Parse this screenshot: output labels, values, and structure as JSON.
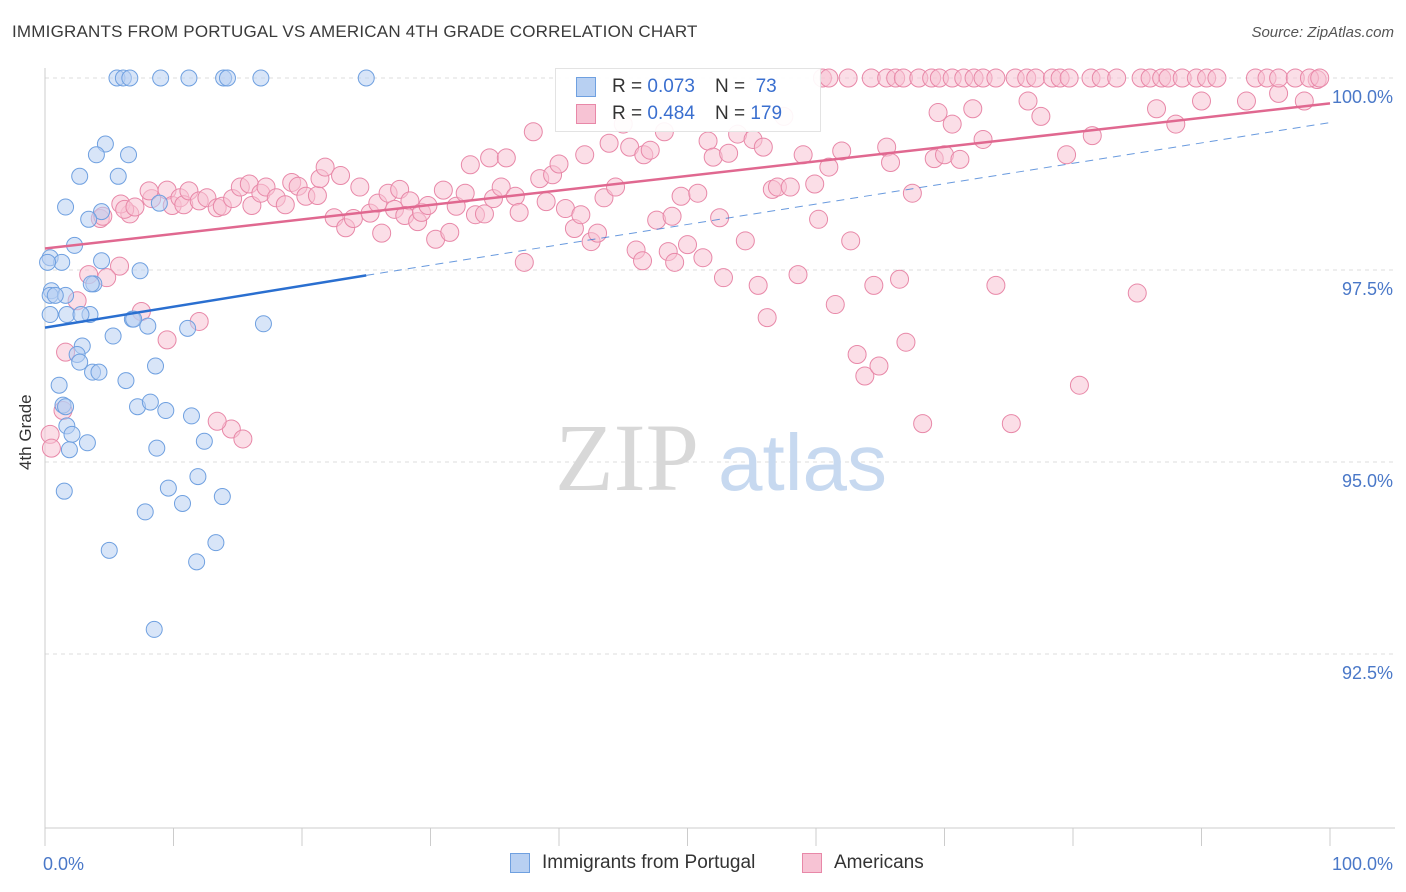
{
  "title": "IMMIGRANTS FROM PORTUGAL VS AMERICAN 4TH GRADE CORRELATION CHART",
  "source": "Source: ZipAtlas.com",
  "watermark": {
    "zip": "ZIP",
    "atlas": "atlas"
  },
  "legend": {
    "r_label": "R =",
    "n_label": "N =",
    "rows": [
      {
        "r": "0.073",
        "n": "73"
      },
      {
        "r": "0.484",
        "n": "179"
      }
    ]
  },
  "bottom_legend": {
    "series1": "Immigrants from Portugal",
    "series2": "Americans"
  },
  "colors": {
    "blue": "#6fa0e0",
    "blue_fill": "#b8d0f2",
    "blue_line": "#2a6fd0",
    "pink": "#e888a8",
    "pink_fill": "#f7c3d4",
    "pink_line": "#e06890",
    "axis_text": "#4a78c8",
    "grid": "#dddddd"
  },
  "chart_data": {
    "type": "scatter",
    "title": "IMMIGRANTS FROM PORTUGAL VS AMERICAN 4TH GRADE CORRELATION CHART",
    "xlabel": "",
    "ylabel": "4th Grade",
    "x_tick_labels": [
      "0.0%",
      "100.0%"
    ],
    "y_tick_labels": [
      "100.0%",
      "97.5%",
      "95.0%",
      "92.5%"
    ],
    "y_ticks": [
      100.0,
      97.5,
      95.0,
      92.5
    ],
    "xlim": [
      0,
      100
    ],
    "ylim": [
      90.5,
      100.2
    ],
    "grid": true,
    "legend_position": "top-center",
    "series": [
      {
        "name": "Immigrants from Portugal",
        "color": "#6fa0e0",
        "R": 0.073,
        "N": 73,
        "trend": {
          "x": [
            0,
            25
          ],
          "y": [
            96.75,
            97.43
          ],
          "style": "solid"
        },
        "trend_extended": {
          "x": [
            25,
            100
          ],
          "y": [
            97.43,
            99.42
          ],
          "style": "dashed"
        },
        "points": [
          [
            5.6,
            100.0
          ],
          [
            6.1,
            100.0
          ],
          [
            6.6,
            100.0
          ],
          [
            9.0,
            100.0
          ],
          [
            11.2,
            100.0
          ],
          [
            13.9,
            100.0
          ],
          [
            14.2,
            100.0
          ],
          [
            16.8,
            100.0
          ],
          [
            25.0,
            100.0
          ],
          [
            4.7,
            99.14
          ],
          [
            4.0,
            99.0
          ],
          [
            6.5,
            99.0
          ],
          [
            2.7,
            98.72
          ],
          [
            5.7,
            98.72
          ],
          [
            1.6,
            98.32
          ],
          [
            4.4,
            98.26
          ],
          [
            3.4,
            98.16
          ],
          [
            8.9,
            98.37
          ],
          [
            2.3,
            97.82
          ],
          [
            0.4,
            97.66
          ],
          [
            1.3,
            97.6
          ],
          [
            0.2,
            97.6
          ],
          [
            4.4,
            97.62
          ],
          [
            7.4,
            97.49
          ],
          [
            3.8,
            97.32
          ],
          [
            3.6,
            97.32
          ],
          [
            0.5,
            97.23
          ],
          [
            0.4,
            97.17
          ],
          [
            1.6,
            97.17
          ],
          [
            0.8,
            97.17
          ],
          [
            1.7,
            96.92
          ],
          [
            3.5,
            96.92
          ],
          [
            0.4,
            96.92
          ],
          [
            2.8,
            96.92
          ],
          [
            6.8,
            96.86
          ],
          [
            6.9,
            96.86
          ],
          [
            8.0,
            96.77
          ],
          [
            11.1,
            96.74
          ],
          [
            17.0,
            96.8
          ],
          [
            5.3,
            96.64
          ],
          [
            2.9,
            96.51
          ],
          [
            2.5,
            96.4
          ],
          [
            2.7,
            96.3
          ],
          [
            3.7,
            96.17
          ],
          [
            4.2,
            96.17
          ],
          [
            8.6,
            96.25
          ],
          [
            6.3,
            96.06
          ],
          [
            1.1,
            96.0
          ],
          [
            1.4,
            95.74
          ],
          [
            1.6,
            95.72
          ],
          [
            7.2,
            95.72
          ],
          [
            8.2,
            95.78
          ],
          [
            9.4,
            95.67
          ],
          [
            11.4,
            95.6
          ],
          [
            1.7,
            95.47
          ],
          [
            2.1,
            95.36
          ],
          [
            3.3,
            95.25
          ],
          [
            12.4,
            95.27
          ],
          [
            8.7,
            95.18
          ],
          [
            1.9,
            95.16
          ],
          [
            11.9,
            94.81
          ],
          [
            9.6,
            94.66
          ],
          [
            1.5,
            94.62
          ],
          [
            10.7,
            94.46
          ],
          [
            13.8,
            94.55
          ],
          [
            7.8,
            94.35
          ],
          [
            13.3,
            93.95
          ],
          [
            5.0,
            93.85
          ],
          [
            11.8,
            93.7
          ],
          [
            8.5,
            92.82
          ]
        ]
      },
      {
        "name": "Americans",
        "color": "#e888a8",
        "R": 0.484,
        "N": 179,
        "trend": {
          "x": [
            0,
            100
          ],
          "y": [
            97.78,
            99.67
          ],
          "style": "solid"
        },
        "points": [
          [
            0.4,
            95.36
          ],
          [
            0.5,
            95.18
          ],
          [
            1.4,
            95.67
          ],
          [
            1.6,
            96.43
          ],
          [
            2.5,
            97.1
          ],
          [
            3.4,
            97.44
          ],
          [
            5.8,
            97.55
          ],
          [
            4.8,
            97.4
          ],
          [
            4.3,
            98.17
          ],
          [
            4.5,
            98.2
          ],
          [
            6.6,
            98.23
          ],
          [
            5.9,
            98.36
          ],
          [
            6.2,
            98.29
          ],
          [
            7.0,
            98.32
          ],
          [
            8.3,
            98.43
          ],
          [
            9.5,
            98.54
          ],
          [
            9.9,
            98.34
          ],
          [
            8.1,
            98.53
          ],
          [
            10.5,
            98.44
          ],
          [
            10.8,
            98.35
          ],
          [
            11.2,
            98.53
          ],
          [
            12.0,
            98.4
          ],
          [
            12.6,
            98.44
          ],
          [
            13.4,
            98.31
          ],
          [
            13.8,
            98.33
          ],
          [
            14.6,
            98.43
          ],
          [
            15.2,
            98.58
          ],
          [
            15.9,
            98.62
          ],
          [
            16.1,
            98.34
          ],
          [
            16.8,
            98.5
          ],
          [
            17.2,
            98.58
          ],
          [
            18.0,
            98.44
          ],
          [
            18.7,
            98.35
          ],
          [
            19.2,
            98.64
          ],
          [
            19.7,
            98.59
          ],
          [
            20.3,
            98.46
          ],
          [
            21.2,
            98.47
          ],
          [
            21.4,
            98.69
          ],
          [
            21.8,
            98.84
          ],
          [
            22.5,
            98.18
          ],
          [
            23.0,
            98.73
          ],
          [
            23.4,
            98.05
          ],
          [
            24.0,
            98.17
          ],
          [
            24.5,
            98.58
          ],
          [
            25.3,
            98.24
          ],
          [
            25.9,
            98.37
          ],
          [
            26.2,
            97.98
          ],
          [
            26.7,
            98.5
          ],
          [
            27.2,
            98.29
          ],
          [
            27.6,
            98.55
          ],
          [
            28.4,
            98.4
          ],
          [
            28.0,
            98.21
          ],
          [
            29.0,
            98.13
          ],
          [
            29.3,
            98.25
          ],
          [
            29.8,
            98.34
          ],
          [
            30.4,
            97.9
          ],
          [
            31.0,
            98.54
          ],
          [
            31.5,
            97.99
          ],
          [
            32.0,
            98.33
          ],
          [
            32.7,
            98.5
          ],
          [
            33.1,
            98.87
          ],
          [
            33.5,
            98.22
          ],
          [
            34.2,
            98.23
          ],
          [
            34.6,
            98.96
          ],
          [
            34.9,
            98.43
          ],
          [
            35.5,
            98.58
          ],
          [
            35.9,
            98.96
          ],
          [
            36.6,
            98.46
          ],
          [
            36.9,
            98.25
          ],
          [
            37.3,
            97.6
          ],
          [
            38.0,
            99.3
          ],
          [
            38.5,
            98.69
          ],
          [
            39.0,
            98.39
          ],
          [
            39.5,
            98.74
          ],
          [
            40.0,
            98.88
          ],
          [
            40.5,
            98.3
          ],
          [
            41.2,
            98.04
          ],
          [
            41.7,
            98.22
          ],
          [
            42.0,
            99.0
          ],
          [
            42.5,
            97.87
          ],
          [
            43.0,
            97.98
          ],
          [
            43.5,
            98.44
          ],
          [
            43.9,
            99.15
          ],
          [
            44.4,
            98.58
          ],
          [
            45.0,
            99.4
          ],
          [
            45.5,
            99.1
          ],
          [
            46.0,
            97.76
          ],
          [
            46.5,
            97.62
          ],
          [
            46.6,
            99.0
          ],
          [
            47.1,
            99.06
          ],
          [
            47.6,
            98.15
          ],
          [
            48.2,
            99.3
          ],
          [
            48.5,
            97.74
          ],
          [
            48.8,
            98.2
          ],
          [
            49.0,
            97.6
          ],
          [
            49.5,
            98.46
          ],
          [
            50.0,
            97.83
          ],
          [
            50.8,
            98.5
          ],
          [
            51.2,
            97.66
          ],
          [
            51.6,
            99.18
          ],
          [
            52.0,
            98.97
          ],
          [
            52.5,
            98.18
          ],
          [
            52.8,
            97.4
          ],
          [
            53.2,
            99.02
          ],
          [
            53.9,
            99.27
          ],
          [
            54.5,
            97.88
          ],
          [
            55.1,
            99.2
          ],
          [
            55.5,
            97.3
          ],
          [
            55.9,
            99.1
          ],
          [
            56.2,
            96.88
          ],
          [
            56.6,
            98.55
          ],
          [
            57.0,
            98.58
          ],
          [
            57.5,
            99.5
          ],
          [
            58.0,
            98.58
          ],
          [
            58.6,
            97.44
          ],
          [
            59.0,
            99.0
          ],
          [
            59.9,
            98.62
          ],
          [
            60.2,
            98.16
          ],
          [
            61.0,
            98.84
          ],
          [
            61.5,
            97.05
          ],
          [
            62.0,
            99.05
          ],
          [
            62.7,
            97.88
          ],
          [
            63.2,
            96.4
          ],
          [
            63.8,
            96.12
          ],
          [
            64.5,
            97.3
          ],
          [
            64.9,
            96.25
          ],
          [
            65.5,
            99.1
          ],
          [
            65.8,
            98.9
          ],
          [
            66.5,
            97.38
          ],
          [
            67.0,
            96.56
          ],
          [
            67.5,
            98.5
          ],
          [
            68.3,
            95.5
          ],
          [
            69.2,
            98.95
          ],
          [
            69.5,
            99.55
          ],
          [
            70.0,
            99.0
          ],
          [
            70.6,
            99.4
          ],
          [
            71.2,
            98.94
          ],
          [
            72.2,
            99.6
          ],
          [
            73.0,
            99.2
          ],
          [
            74.0,
            97.3
          ],
          [
            75.2,
            95.5
          ],
          [
            76.5,
            99.7
          ],
          [
            77.5,
            99.5
          ],
          [
            79.5,
            99.0
          ],
          [
            80.5,
            96.0
          ],
          [
            81.5,
            99.25
          ],
          [
            85.0,
            97.2
          ],
          [
            86.5,
            99.6
          ],
          [
            88.0,
            99.4
          ],
          [
            90.0,
            99.7
          ],
          [
            93.5,
            99.7
          ],
          [
            96.0,
            99.8
          ],
          [
            98.0,
            99.7
          ],
          [
            99.0,
            99.98
          ],
          [
            14.5,
            95.43
          ],
          [
            15.4,
            95.3
          ],
          [
            13.4,
            95.53
          ],
          [
            12.0,
            96.83
          ],
          [
            7.5,
            96.96
          ],
          [
            9.5,
            96.59
          ],
          [
            60.5,
            100.0
          ],
          [
            61.0,
            100.0
          ],
          [
            62.5,
            100.0
          ],
          [
            64.3,
            100.0
          ],
          [
            65.5,
            100.0
          ],
          [
            66.2,
            100.0
          ],
          [
            66.8,
            100.0
          ],
          [
            68.0,
            100.0
          ],
          [
            69.0,
            100.0
          ],
          [
            69.6,
            100.0
          ],
          [
            70.6,
            100.0
          ],
          [
            71.5,
            100.0
          ],
          [
            72.3,
            100.0
          ],
          [
            73.0,
            100.0
          ],
          [
            74.0,
            100.0
          ],
          [
            75.5,
            100.0
          ],
          [
            76.4,
            100.0
          ],
          [
            77.1,
            100.0
          ],
          [
            78.4,
            100.0
          ],
          [
            79.0,
            100.0
          ],
          [
            79.7,
            100.0
          ],
          [
            81.4,
            100.0
          ],
          [
            82.2,
            100.0
          ],
          [
            83.4,
            100.0
          ],
          [
            85.3,
            100.0
          ],
          [
            86.0,
            100.0
          ],
          [
            86.9,
            100.0
          ],
          [
            87.4,
            100.0
          ],
          [
            88.5,
            100.0
          ],
          [
            89.6,
            100.0
          ],
          [
            90.4,
            100.0
          ],
          [
            91.2,
            100.0
          ],
          [
            94.2,
            100.0
          ],
          [
            95.1,
            100.0
          ],
          [
            96.0,
            100.0
          ],
          [
            97.3,
            100.0
          ],
          [
            98.4,
            100.0
          ],
          [
            99.2,
            100.0
          ]
        ]
      }
    ]
  }
}
